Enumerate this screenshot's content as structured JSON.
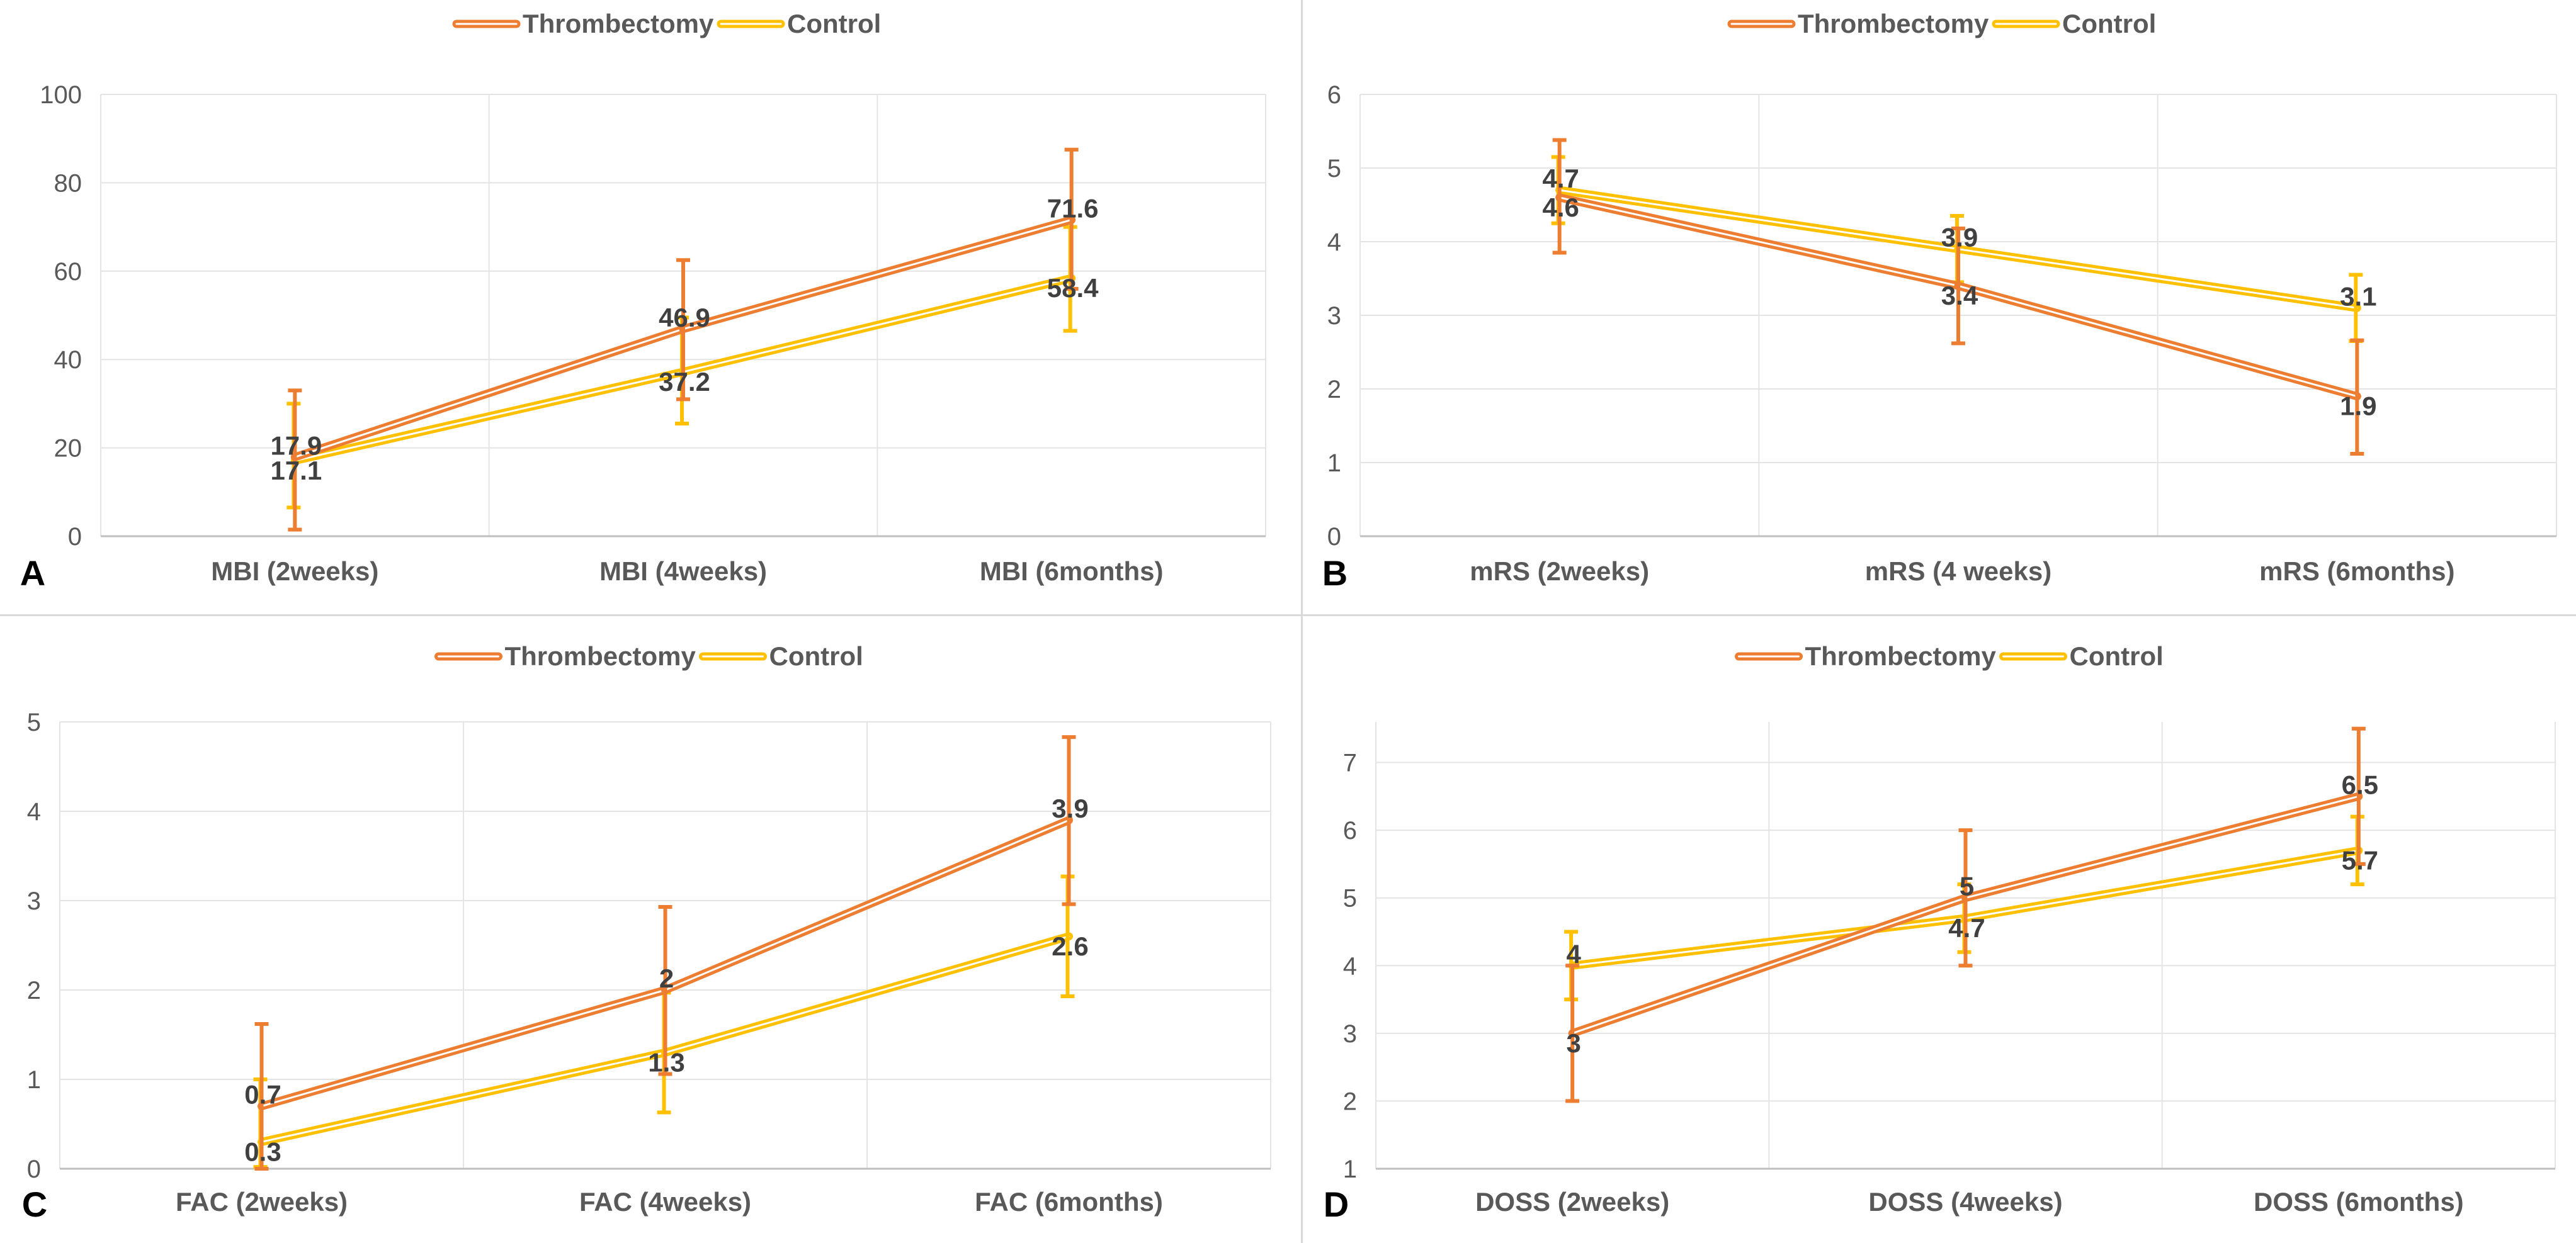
{
  "colors": {
    "thrombectomy": "#ED7D31",
    "control": "#FFC000",
    "grid": "#e4e4e4",
    "axis": "#bfbfbf",
    "text": "#595959",
    "label": "#404040",
    "panel_letter": "#000000"
  },
  "chart_data": [
    {
      "type": "line",
      "panel": "A",
      "categories": [
        "MBI (2weeks)",
        "MBI (4weeks)",
        "MBI (6months)"
      ],
      "ylim": [
        0,
        100
      ],
      "yticks": [
        "0",
        "20",
        "40",
        "60",
        "80",
        "100"
      ],
      "series": [
        {
          "name": "Thrombectomy",
          "values": [
            17.9,
            46.9,
            71.6
          ],
          "labels": [
            "17.9",
            "46.9",
            "71.6"
          ],
          "err_low": [
            1.5,
            31,
            56
          ],
          "err_high": [
            33,
            62.5,
            87.5
          ]
        },
        {
          "name": "Control",
          "values": [
            17.1,
            37.2,
            58.4
          ],
          "labels": [
            "17.1",
            "37.2",
            "58.4"
          ],
          "err_low": [
            6.5,
            25.5,
            46.5
          ],
          "err_high": [
            30,
            49.5,
            70
          ]
        }
      ]
    },
    {
      "type": "line",
      "panel": "B",
      "categories": [
        "mRS (2weeks)",
        "mRS (4 weeks)",
        "mRS (6months)"
      ],
      "ylim": [
        0,
        6
      ],
      "yticks": [
        "0",
        "1",
        "2",
        "3",
        "4",
        "5",
        "6"
      ],
      "series": [
        {
          "name": "Thrombectomy",
          "values": [
            4.6,
            3.4,
            1.9
          ],
          "labels": [
            "4.6",
            "3.4",
            "1.9"
          ],
          "err_low": [
            3.85,
            2.62,
            1.12
          ],
          "err_high": [
            5.38,
            4.18,
            2.66
          ]
        },
        {
          "name": "Control",
          "values": [
            4.7,
            3.9,
            3.1
          ],
          "labels": [
            "4.7",
            "3.9",
            "3.1"
          ],
          "err_low": [
            4.25,
            3.45,
            2.65
          ],
          "err_high": [
            5.15,
            4.35,
            3.55
          ]
        }
      ]
    },
    {
      "type": "line",
      "panel": "C",
      "categories": [
        "FAC (2weeks)",
        "FAC (4weeks)",
        "FAC (6months)"
      ],
      "ylim": [
        0,
        5
      ],
      "yticks": [
        "0",
        "1",
        "2",
        "3",
        "4",
        "5"
      ],
      "series": [
        {
          "name": "Thrombectomy",
          "values": [
            0.7,
            2,
            3.9
          ],
          "labels": [
            "0.7",
            "2",
            "3.9"
          ],
          "err_low": [
            0.0,
            1.06,
            2.96
          ],
          "err_high": [
            1.62,
            2.93,
            4.83
          ]
        },
        {
          "name": "Control",
          "values": [
            0.3,
            1.3,
            2.6
          ],
          "labels": [
            "0.3",
            "1.3",
            "2.6"
          ],
          "err_low": [
            0.02,
            0.63,
            1.93
          ],
          "err_high": [
            1.0,
            1.97,
            3.27
          ]
        }
      ]
    },
    {
      "type": "line",
      "panel": "D",
      "categories": [
        "DOSS (2weeks)",
        "DOSS (4weeks)",
        "DOSS (6months)"
      ],
      "ylim": [
        1,
        7.6
      ],
      "yticks": [
        "1",
        "2",
        "3",
        "4",
        "5",
        "6",
        "7"
      ],
      "series": [
        {
          "name": "Thrombectomy",
          "values": [
            3,
            5,
            6.5
          ],
          "labels": [
            "3",
            "5",
            "6.5"
          ],
          "err_low": [
            2,
            4,
            5.5
          ],
          "err_high": [
            4,
            6,
            7.5
          ]
        },
        {
          "name": "Control",
          "values": [
            4,
            4.7,
            5.7
          ],
          "labels": [
            "4",
            "4.7",
            "5.7"
          ],
          "err_low": [
            3.5,
            4.2,
            5.2
          ],
          "err_high": [
            4.5,
            5.2,
            6.2
          ]
        }
      ]
    }
  ]
}
